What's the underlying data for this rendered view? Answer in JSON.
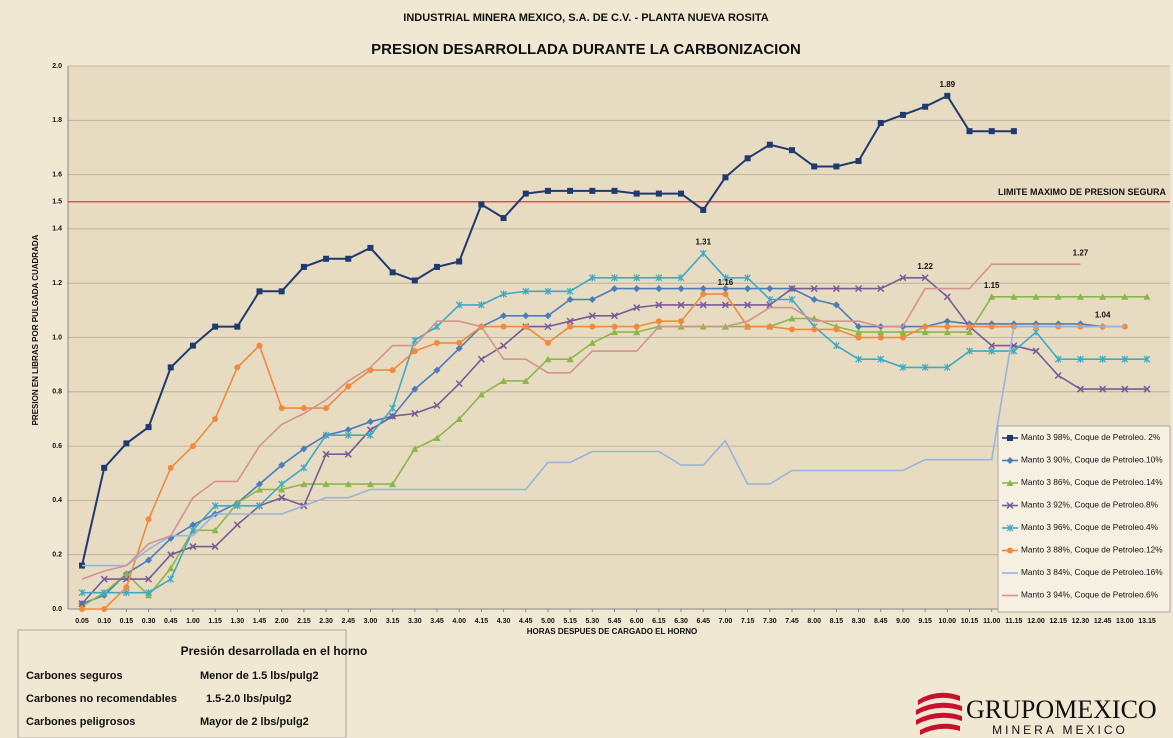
{
  "chart_data": {
    "type": "line",
    "supertitle": "INDUSTRIAL  MINERA MEXICO, S.A. DE C.V. - PLANTA NUEVA ROSITA",
    "title": "PRESION DESARROLLADA DURANTE LA CARBONIZACION",
    "x_label": "HORAS DESPUES DE CARGADO EL HORNO",
    "y_label": "PRESION EN LIBRAS POR PULGADA CUADRADA",
    "categories": [
      "0.05",
      "0.10",
      "0.15",
      "0.30",
      "0.45",
      "1.00",
      "1.15",
      "1.30",
      "1.45",
      "2.00",
      "2.15",
      "2.30",
      "2.45",
      "3.00",
      "3.15",
      "3.30",
      "3.45",
      "4.00",
      "4.15",
      "4.30",
      "4.45",
      "5.00",
      "5.15",
      "5.30",
      "5.45",
      "6.00",
      "6.15",
      "6.30",
      "6.45",
      "7.00",
      "7.15",
      "7.30",
      "7.45",
      "8.00",
      "8.15",
      "8.30",
      "8.45",
      "9.00",
      "9.15",
      "10.00",
      "10.15",
      "11.00",
      "11.15",
      "12.00",
      "12.15",
      "12.30",
      "12.45",
      "13.00",
      "13.15"
    ],
    "ylim": [
      0,
      2
    ],
    "yticks": [
      {
        "value": 0,
        "label": "0.0"
      },
      {
        "value": 0.2,
        "label": "0.2"
      },
      {
        "value": 0.4,
        "label": "0.4"
      },
      {
        "value": 0.6,
        "label": "0.6"
      },
      {
        "value": 0.8,
        "label": "0.8"
      },
      {
        "value": 1,
        "label": "1.0"
      },
      {
        "value": 1.2,
        "label": "1.2"
      },
      {
        "value": 1.4,
        "label": "1.4"
      },
      {
        "value": 1.6,
        "label": "1.6"
      },
      {
        "value": 1.8,
        "label": "1.8"
      },
      {
        "value": 2,
        "label": "2.0"
      }
    ],
    "grid": true,
    "limit": {
      "value": 1.5,
      "label": "1.5",
      "text": "LIMITE MAXIMO DE PRESION SEGURA",
      "color": "#e8343a"
    },
    "legend": "right",
    "series": [
      {
        "name": "Manto 3 98%, Coque de Petroleo. 2%",
        "color": "#1f3a6e",
        "marker": "square",
        "labeled": [
          39
        ],
        "values": [
          0.16,
          0.52,
          0.61,
          0.67,
          0.89,
          0.97,
          1.04,
          1.04,
          1.17,
          1.17,
          1.26,
          1.29,
          1.29,
          1.33,
          1.24,
          1.21,
          1.26,
          1.28,
          1.49,
          1.44,
          1.53,
          1.54,
          1.54,
          1.54,
          1.54,
          1.53,
          1.53,
          1.53,
          1.47,
          1.59,
          1.66,
          1.71,
          1.69,
          1.63,
          1.63,
          1.65,
          1.79,
          1.82,
          1.85,
          1.89,
          1.76,
          1.76,
          1.76,
          null,
          null,
          null,
          null,
          null,
          null
        ]
      },
      {
        "name": "Manto 3 90%, Coque de Petroleo.10%",
        "color": "#4a7ebb",
        "marker": "diamond",
        "labeled": [
          46
        ],
        "values": [
          0.02,
          0.05,
          0.13,
          0.18,
          0.26,
          0.31,
          0.35,
          0.39,
          0.46,
          0.53,
          0.59,
          0.64,
          0.66,
          0.69,
          0.71,
          0.81,
          0.88,
          0.96,
          1.04,
          1.08,
          1.08,
          1.08,
          1.14,
          1.14,
          1.18,
          1.18,
          1.18,
          1.18,
          1.18,
          1.18,
          1.18,
          1.18,
          1.18,
          1.14,
          1.12,
          1.04,
          1.04,
          1.04,
          1.04,
          1.06,
          1.05,
          1.05,
          1.05,
          1.05,
          1.05,
          1.05,
          1.04,
          null,
          null
        ]
      },
      {
        "name": "Manto 3 86%, Coque de Petroleo.14%",
        "color": "#8db64a",
        "marker": "triangle",
        "labeled": [
          41
        ],
        "values": [
          0.01,
          0.06,
          0.13,
          0.05,
          0.15,
          0.29,
          0.29,
          0.39,
          0.44,
          0.44,
          0.46,
          0.46,
          0.46,
          0.46,
          0.46,
          0.59,
          0.63,
          0.7,
          0.79,
          0.84,
          0.84,
          0.92,
          0.92,
          0.98,
          1.02,
          1.02,
          1.04,
          1.04,
          1.04,
          1.04,
          1.04,
          1.04,
          1.07,
          1.07,
          1.04,
          1.02,
          1.02,
          1.02,
          1.02,
          1.02,
          1.02,
          1.15,
          1.15,
          1.15,
          1.15,
          1.15,
          1.15,
          1.15,
          1.15
        ]
      },
      {
        "name": "Manto 3 92%, Coque de Petroleo.8%",
        "color": "#7a5a98",
        "marker": "x",
        "labeled": [
          38
        ],
        "values": [
          0.02,
          0.11,
          0.11,
          0.11,
          0.2,
          0.23,
          0.23,
          0.31,
          0.38,
          0.41,
          0.38,
          0.57,
          0.57,
          0.66,
          0.71,
          0.72,
          0.75,
          0.83,
          0.92,
          0.97,
          1.04,
          1.04,
          1.06,
          1.08,
          1.08,
          1.11,
          1.12,
          1.12,
          1.12,
          1.12,
          1.12,
          1.12,
          1.18,
          1.18,
          1.18,
          1.18,
          1.18,
          1.22,
          1.22,
          1.15,
          1.04,
          0.97,
          0.97,
          0.95,
          0.86,
          0.81,
          0.81,
          0.81,
          0.81
        ]
      },
      {
        "name": "Manto 3 96%, Coque de Petroleo.4%",
        "color": "#3fa9c4",
        "marker": "star",
        "labeled": [
          28
        ],
        "values": [
          0.06,
          0.06,
          0.06,
          0.06,
          0.11,
          0.29,
          0.38,
          0.38,
          0.38,
          0.46,
          0.52,
          0.64,
          0.64,
          0.64,
          0.74,
          0.99,
          1.04,
          1.12,
          1.12,
          1.16,
          1.17,
          1.17,
          1.17,
          1.22,
          1.22,
          1.22,
          1.22,
          1.22,
          1.31,
          1.22,
          1.22,
          1.14,
          1.14,
          1.04,
          0.97,
          0.92,
          0.92,
          0.89,
          0.89,
          0.89,
          0.95,
          0.95,
          0.95,
          1.02,
          0.92,
          0.92,
          0.92,
          0.92,
          0.92
        ]
      },
      {
        "name": "Manto 3 88%, Coque de Petroleo.12%",
        "color": "#f08a3c",
        "marker": "circle",
        "labeled": [
          29
        ],
        "values": [
          0.0,
          0.0,
          0.08,
          0.33,
          0.52,
          0.6,
          0.7,
          0.89,
          0.97,
          0.74,
          0.74,
          0.74,
          0.82,
          0.88,
          0.88,
          0.95,
          0.98,
          0.98,
          1.04,
          1.04,
          1.04,
          0.98,
          1.04,
          1.04,
          1.04,
          1.04,
          1.06,
          1.06,
          1.16,
          1.16,
          1.04,
          1.04,
          1.03,
          1.03,
          1.03,
          1.0,
          1.0,
          1.0,
          1.04,
          1.04,
          1.04,
          1.04,
          1.04,
          1.04,
          1.04,
          1.04,
          1.04,
          1.04,
          null
        ]
      },
      {
        "name": "Manto 3 84%, Coque de Petroleo.16%",
        "color": "#98b4dc",
        "marker": "none",
        "labeled": [],
        "values": [
          0.16,
          0.16,
          0.16,
          0.22,
          0.27,
          0.27,
          0.35,
          0.35,
          0.35,
          0.35,
          0.38,
          0.41,
          0.41,
          0.44,
          0.44,
          0.44,
          0.44,
          0.44,
          0.44,
          0.44,
          0.44,
          0.54,
          0.54,
          0.58,
          0.58,
          0.58,
          0.58,
          0.53,
          0.53,
          0.62,
          0.46,
          0.46,
          0.51,
          0.51,
          0.51,
          0.51,
          0.51,
          0.51,
          0.55,
          0.55,
          0.55,
          0.55,
          1.04,
          1.04,
          1.04,
          1.04,
          1.04,
          1.04,
          null
        ]
      },
      {
        "name": "Manto 3 94%, Coque de Petroleo.6%",
        "color": "#d4928f",
        "marker": "none",
        "labeled": [
          45
        ],
        "values": [
          0.11,
          0.14,
          0.16,
          0.24,
          0.27,
          0.41,
          0.47,
          0.47,
          0.6,
          0.68,
          0.72,
          0.77,
          0.84,
          0.89,
          0.97,
          0.97,
          1.06,
          1.06,
          1.04,
          0.92,
          0.92,
          0.87,
          0.87,
          0.95,
          0.95,
          0.95,
          1.04,
          1.04,
          1.04,
          1.04,
          1.06,
          1.11,
          1.11,
          1.06,
          1.06,
          1.06,
          1.04,
          1.04,
          1.18,
          1.18,
          1.18,
          1.27,
          1.27,
          1.27,
          1.27,
          1.27,
          null,
          null,
          null
        ]
      }
    ]
  },
  "panel": {
    "title": "Presión desarrollada en el horno",
    "rows": [
      [
        "Carbones seguros",
        "Menor de 1.5 lbs/pulg2"
      ],
      [
        "Carbones no recomendables",
        "1.5-2.0 lbs/pulg2"
      ],
      [
        "Carbones peligrosos",
        "Mayor de 2 lbs/pulg2"
      ]
    ]
  },
  "logo": {
    "name": "GRUPOMEXICO",
    "sub": "MINERA MEXICO"
  }
}
